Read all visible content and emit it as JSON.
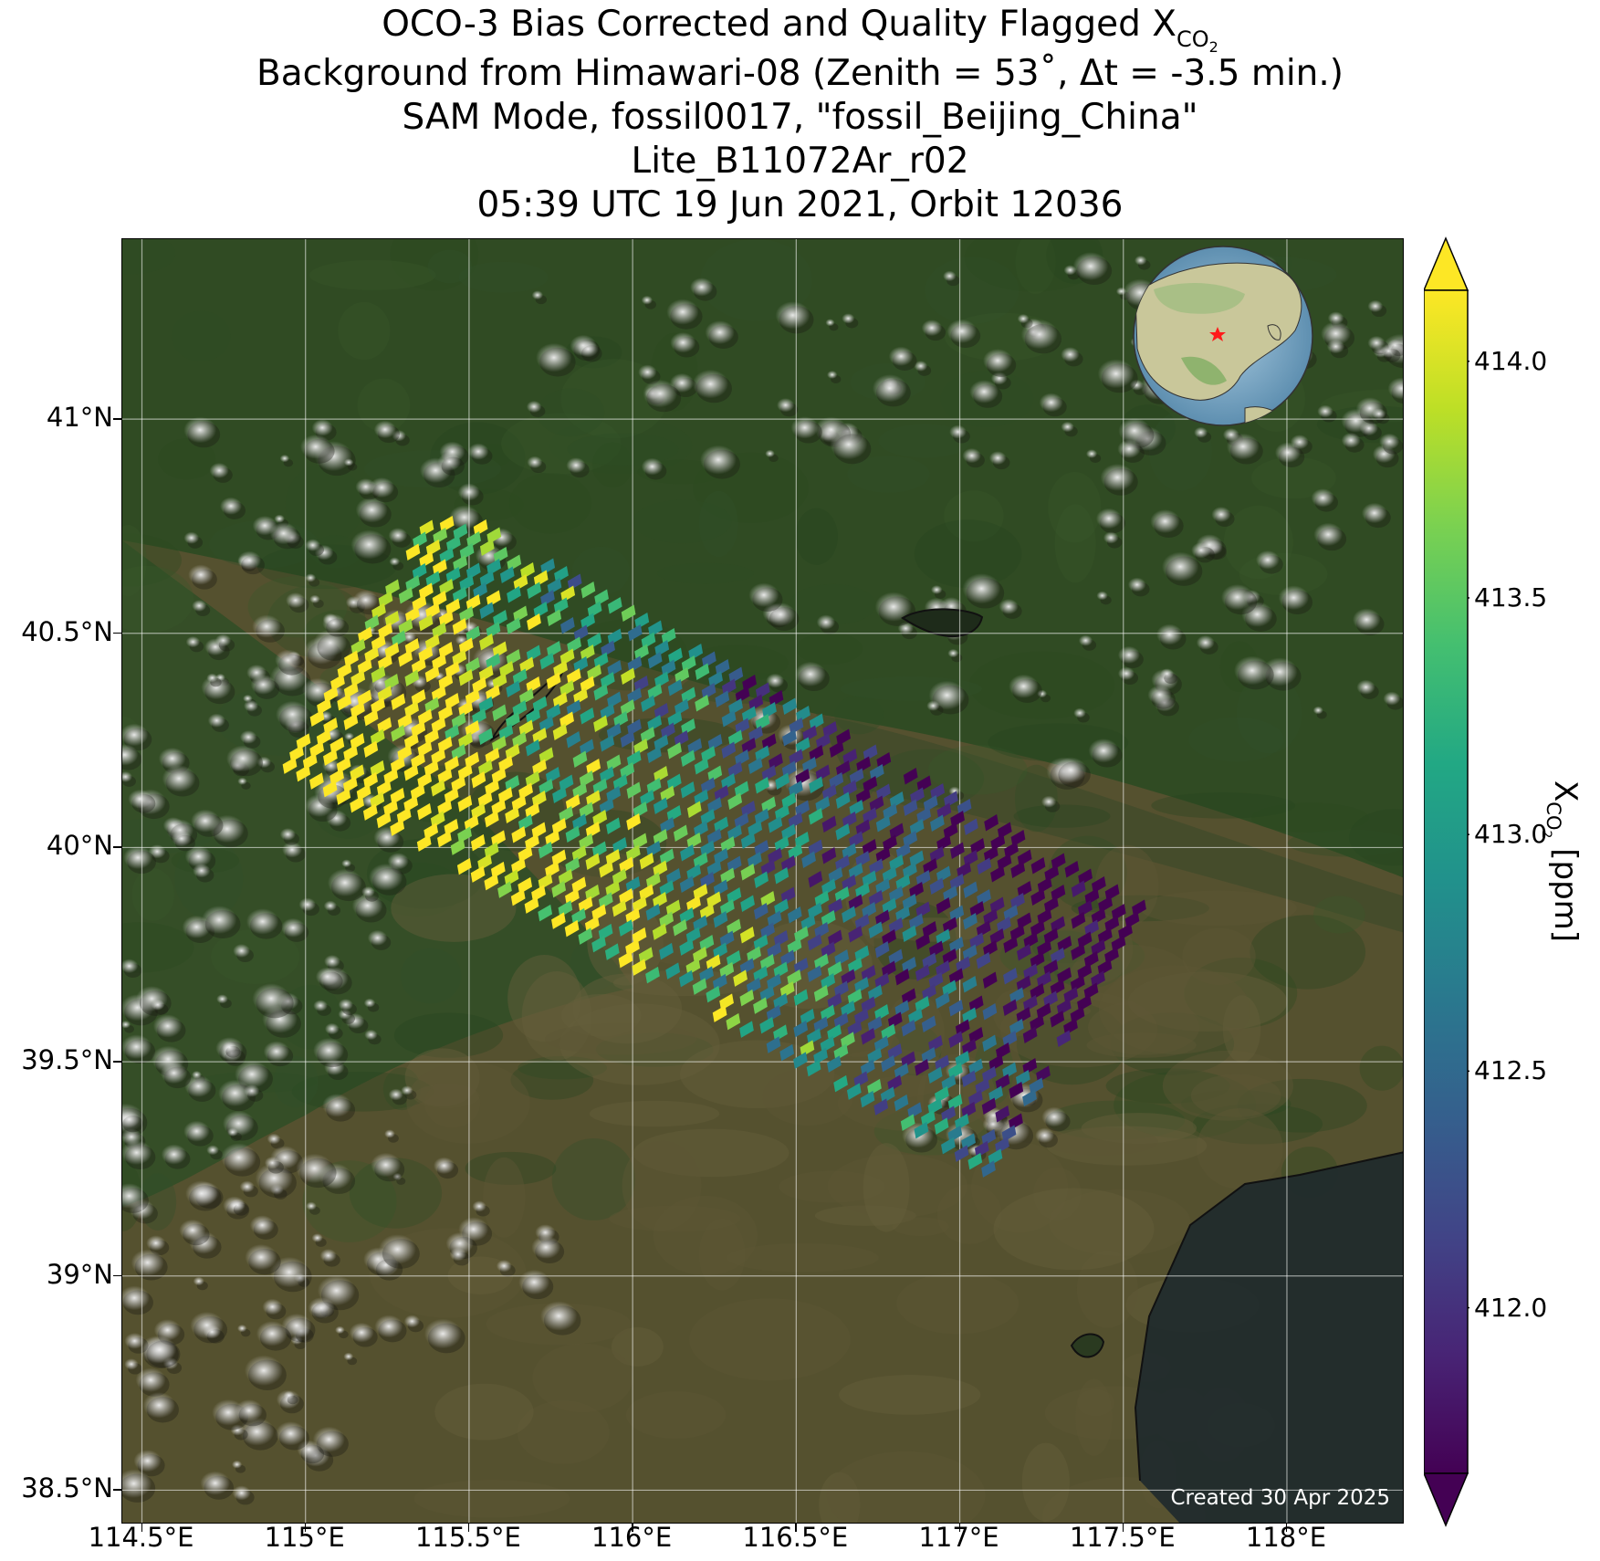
{
  "title": {
    "line1_prefix": "OCO-3 Bias Corrected and Quality Flagged X",
    "line1_sub": "CO",
    "line1_sub2": "2",
    "line2": "Background from Himawari-08 (Zenith = 53˚, Δt = -3.5 min.)",
    "line3": "SAM Mode, fossil0017, \"fossil_Beijing_China\"",
    "line4": "Lite_B11072Ar_r02",
    "line5": "05:39 UTC 19 Jun 2021, Orbit 12036"
  },
  "axes": {
    "lat_ticks": [
      "41°N",
      "40.5°N",
      "40°N",
      "39.5°N",
      "39°N",
      "38.5°N"
    ],
    "lat_values": [
      41.0,
      40.5,
      40.0,
      39.5,
      39.0,
      38.5
    ],
    "lon_ticks": [
      "114.5°E",
      "115°E",
      "115.5°E",
      "116°E",
      "116.5°E",
      "117°E",
      "117.5°E",
      "118°E"
    ],
    "lon_values": [
      114.5,
      115.0,
      115.5,
      116.0,
      116.5,
      117.0,
      117.5,
      118.0
    ],
    "lat_range": [
      38.42,
      41.42
    ],
    "lon_range": [
      114.44,
      118.36
    ]
  },
  "colorbar": {
    "label_prefix": "X",
    "label_sub": "CO",
    "label_sub2": "2",
    "label_suffix": " [ppm]",
    "ticks": [
      "414.0",
      "413.5",
      "413.0",
      "412.5",
      "412.0"
    ],
    "tick_values": [
      414.0,
      413.5,
      413.0,
      412.5,
      412.0
    ],
    "range": [
      411.65,
      414.15
    ],
    "colormap": "viridis",
    "extend": "both"
  },
  "created_text": "Created 30 Apr 2025",
  "inset_globe": {
    "marker": "red-star",
    "center": "East Asia"
  },
  "colors": {
    "land_dark": "#2f4a22",
    "land_brown": "#5a5433",
    "sea": "#1f2a2c",
    "cloud": "#e8e8e8"
  },
  "chart_data": {
    "type": "map-scatter",
    "variable": "XCO2 [ppm]",
    "swath_region": {
      "lon_range": [
        115.5,
        116.9
      ],
      "lat_range": [
        39.45,
        40.6
      ]
    },
    "pattern": "high values (yellow, ~414) concentrated in western and southern swath; low values (purple, ~412) in northeastern part"
  }
}
